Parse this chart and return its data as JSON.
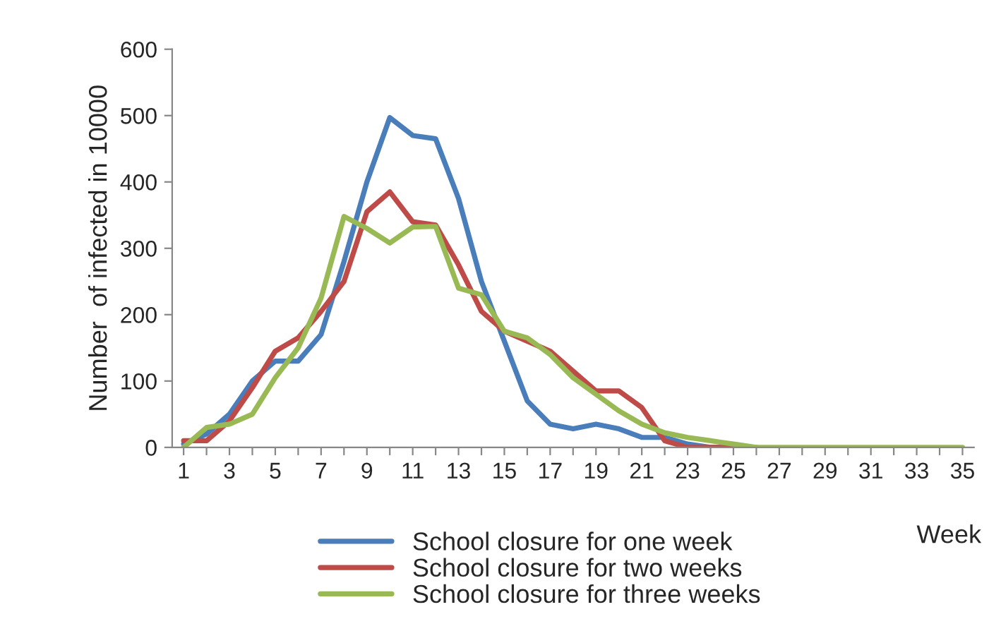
{
  "chart_data": {
    "type": "line",
    "xlabel": "Week",
    "ylabel": "Number  of infected in 10000",
    "categories": [
      "1",
      null,
      "3",
      null,
      "5",
      null,
      "7",
      null,
      "9",
      null,
      "11",
      null,
      "13",
      null,
      "15",
      null,
      "17",
      null,
      "19",
      null,
      "21",
      null,
      "23",
      null,
      "25",
      null,
      "27",
      null,
      "29",
      null,
      "31",
      null,
      "33",
      null,
      "35"
    ],
    "series": [
      {
        "name": "School closure for one week",
        "color": "#4a7ebb",
        "values": [
          5,
          20,
          50,
          100,
          130,
          130,
          170,
          280,
          400,
          497,
          470,
          465,
          375,
          250,
          160,
          70,
          35,
          28,
          35,
          28,
          15,
          15,
          5,
          0,
          0,
          null,
          null,
          null,
          null,
          null,
          null,
          null,
          null,
          null,
          null
        ]
      },
      {
        "name": "School closure for two weeks",
        "color": "#be4b48",
        "values": [
          10,
          10,
          40,
          90,
          145,
          165,
          205,
          250,
          355,
          385,
          340,
          335,
          275,
          205,
          175,
          160,
          145,
          115,
          85,
          85,
          60,
          10,
          0,
          0,
          0,
          0,
          null,
          null,
          null,
          null,
          null,
          null,
          null,
          null,
          null
        ]
      },
      {
        "name": "School closure for three weeks",
        "color": "#98b954",
        "values": [
          0,
          30,
          35,
          50,
          105,
          150,
          225,
          348,
          330,
          308,
          332,
          333,
          240,
          230,
          175,
          165,
          140,
          105,
          80,
          55,
          35,
          22,
          15,
          10,
          5,
          0,
          0,
          0,
          0,
          0,
          0,
          0,
          0,
          0,
          0
        ]
      }
    ],
    "ylim": [
      0,
      600
    ],
    "yticks": [
      0,
      100,
      200,
      300,
      400,
      500,
      600
    ],
    "grid": false,
    "legend": "bottom",
    "marker": "none",
    "line_style": "solid"
  }
}
